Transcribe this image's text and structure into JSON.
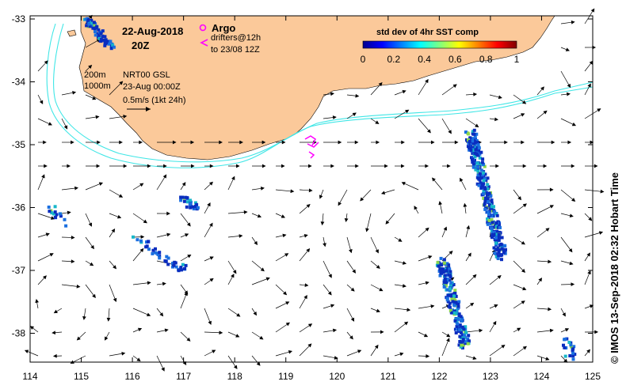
{
  "map": {
    "date_title": "22-Aug-2018",
    "time_title": "20Z",
    "argo_label": "Argo",
    "drifters_label": "drifters@12h",
    "drifters_to_label": "to 23/08 12Z",
    "isobath_200": "200m",
    "isobath_1000": "1000m",
    "product_label": "NRT00 GSL",
    "product_time": "23-Aug 00:00Z",
    "scale_label": "0.5m/s (1kt 24h)",
    "credit": "© IMOS 13-Sep-2018 02:32 Hobart Time",
    "x_ticks": [
      "114",
      "115",
      "116",
      "117",
      "118",
      "119",
      "120",
      "121",
      "122",
      "123",
      "124",
      "125"
    ],
    "y_ticks": [
      "-33",
      "-34",
      "-35",
      "-36",
      "-37",
      "-38"
    ],
    "colorbar": {
      "title": "std dev of 4hr SST comp",
      "ticks": [
        "0",
        "0.2",
        "0.4",
        "0.6",
        "0.8",
        "1"
      ]
    },
    "colors": {
      "land": "#FBC99A",
      "isobath": "#3FE6E6",
      "argo": "#FF00FF",
      "drifter": "#FF00FF",
      "sst_low": "#1030C0"
    }
  }
}
